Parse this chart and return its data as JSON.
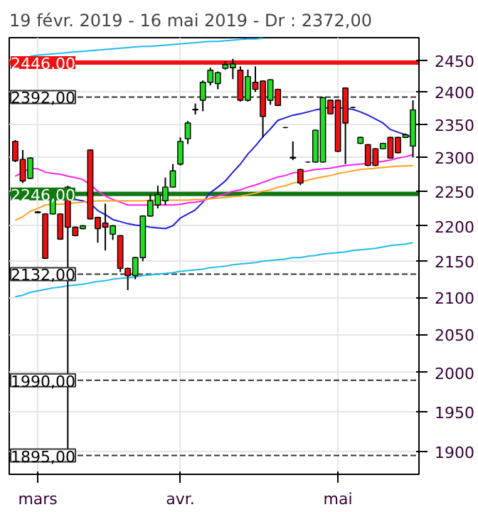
{
  "chart_data": {
    "type": "candlestick",
    "title": "19 févr. 2019 - 16 mai 2019 - Dr : 2372,00",
    "log": "y",
    "grid": true,
    "ylim": [
      1872,
      2486
    ],
    "yticks": [
      1900,
      1950,
      2000,
      2050,
      2100,
      2150,
      2200,
      2250,
      2300,
      2350,
      2400,
      2450
    ],
    "categories": [
      null,
      null,
      null,
      "mars",
      null,
      null,
      null,
      null,
      null,
      null,
      null,
      null,
      null,
      null,
      null,
      null,
      null,
      null,
      null,
      null,
      null,
      null,
      "avr.",
      null,
      null,
      null,
      null,
      null,
      null,
      null,
      null,
      null,
      null,
      null,
      null,
      null,
      null,
      null,
      null,
      null,
      null,
      null,
      null,
      "mai",
      null,
      null,
      null,
      null,
      null,
      null,
      null,
      null,
      null,
      null
    ],
    "ohlc": [
      [
        2324,
        2326,
        2293,
        2295
      ],
      [
        2297,
        2311,
        2262,
        2265
      ],
      [
        2269,
        2300,
        2268,
        2299
      ],
      [
        2220,
        2221,
        2218,
        2219
      ],
      [
        2217,
        2218,
        2153,
        2154
      ],
      [
        2217,
        2246,
        2216,
        2245
      ],
      [
        2217,
        2218,
        2180,
        2181
      ],
      [
        2256,
        2258,
        1895,
        2198
      ],
      [
        2198,
        2199,
        2185,
        2186
      ],
      [
        2196,
        2201,
        2195,
        2200
      ],
      [
        2311,
        2312,
        2209,
        2210
      ],
      [
        2212,
        2213,
        2176,
        2196
      ],
      [
        2204,
        2232,
        2165,
        2198
      ],
      [
        2188,
        2201,
        2180,
        2200
      ],
      [
        2186,
        2187,
        2135,
        2140
      ],
      [
        2140,
        2141,
        2110,
        2130
      ],
      [
        2130,
        2156,
        2125,
        2155
      ],
      [
        2155,
        2215,
        2150,
        2214
      ],
      [
        2214,
        2245,
        2213,
        2236
      ],
      [
        2230,
        2258,
        2225,
        2245
      ],
      [
        2236,
        2270,
        2230,
        2256
      ],
      [
        2256,
        2290,
        2255,
        2280
      ],
      [
        2290,
        2330,
        2288,
        2324
      ],
      [
        2328,
        2355,
        2320,
        2352
      ],
      [
        2372,
        2382,
        2365,
        2373
      ],
      [
        2387,
        2418,
        2370,
        2415
      ],
      [
        2415,
        2438,
        2410,
        2434
      ],
      [
        2413,
        2432,
        2404,
        2430
      ],
      [
        2437,
        2448,
        2435,
        2443
      ],
      [
        2438,
        2452,
        2420,
        2444
      ],
      [
        2434,
        2440,
        2385,
        2387
      ],
      [
        2387,
        2435,
        2385,
        2424
      ],
      [
        2415,
        2440,
        2400,
        2404
      ],
      [
        2417,
        2418,
        2330,
        2362
      ],
      [
        2387,
        2420,
        2380,
        2419
      ],
      [
        2404,
        2405,
        2378,
        2379
      ],
      [
        2345,
        2346,
        2344,
        2345
      ],
      [
        2299,
        2324,
        2296,
        2300
      ],
      [
        2282,
        2283,
        2259,
        2262
      ],
      [
        2293,
        2294,
        2292,
        2293
      ],
      [
        2293,
        2342,
        2292,
        2341
      ],
      [
        2293,
        2392,
        2292,
        2391
      ],
      [
        2387,
        2388,
        2365,
        2366
      ],
      [
        2387,
        2388,
        2308,
        2309
      ],
      [
        2406,
        2407,
        2290,
        2352
      ],
      [
        2376,
        2377,
        2375,
        2376
      ],
      [
        2321,
        2331,
        2320,
        2330
      ],
      [
        2319,
        2320,
        2287,
        2288
      ],
      [
        2313,
        2314,
        2287,
        2288
      ],
      [
        2313,
        2322,
        2312,
        2321
      ],
      [
        2330,
        2331,
        2299,
        2299
      ],
      [
        2330,
        2331,
        2306,
        2307
      ],
      [
        2330,
        2336,
        2329,
        2334
      ],
      [
        2317,
        2387,
        2300,
        2372
      ]
    ],
    "colors": [
      "#ee1111",
      "#ee1111",
      "#22dd22",
      "#000000",
      "#ee1111",
      "#22dd22",
      "#ee1111",
      "#ee1111",
      "#ee1111",
      "#22dd22",
      "#ee1111",
      "#ee1111",
      "#ee1111",
      "#22dd22",
      "#ee1111",
      "#ee1111",
      "#22dd22",
      "#22dd22",
      "#22dd22",
      "#22dd22",
      "#22dd22",
      "#22dd22",
      "#22dd22",
      "#22dd22",
      "#000000",
      "#22dd22",
      "#22dd22",
      "#22dd22",
      "#22dd22",
      "#22dd22",
      "#ee1111",
      "#22dd22",
      "#ee1111",
      "#ee1111",
      "#22dd22",
      "#ee1111",
      "#000000",
      "#000000",
      "#ee1111",
      "#000000",
      "#22dd22",
      "#22dd22",
      "#ee1111",
      "#ee1111",
      "#ee1111",
      "#000000",
      "#22dd22",
      "#ee1111",
      "#ee1111",
      "#22dd22",
      "#ee1111",
      "#ee1111",
      "#22dd22",
      "#22dd22"
    ],
    "series": [
      {
        "type": "line",
        "color": "#1f1fdd",
        "values": [
          null,
          null,
          null,
          null,
          null,
          null,
          null,
          null,
          2238,
          2236,
          2232,
          2222,
          2216,
          2209,
          2206,
          2203,
          2201,
          2200,
          2198,
          2197,
          2196,
          2200,
          2211,
          2217,
          2223,
          2234,
          2248,
          2256,
          2265,
          2278,
          2290,
          2305,
          2317,
          2331,
          2343,
          2356,
          2360,
          2364,
          2366,
          2369,
          2372,
          2374,
          2376,
          2376,
          2374,
          2373,
          2369,
          2364,
          2358,
          2352,
          2342,
          2338,
          2334,
          2330
        ]
      },
      {
        "type": "line",
        "color": "#ff22ee",
        "values": [
          2272,
          2278,
          2284,
          2283,
          2278,
          2276,
          2275,
          2272,
          2270,
          2267,
          2260,
          2250,
          2243,
          2238,
          2234,
          2230,
          2230,
          2230,
          2230,
          2230,
          2230,
          2230,
          2231,
          2233,
          2234,
          2236,
          2240,
          2243,
          2246,
          2250,
          2252,
          2256,
          2259,
          2263,
          2267,
          2271,
          2273,
          2277,
          2278,
          2280,
          2282,
          2283,
          2284,
          2286,
          2288,
          2289,
          2290,
          2291,
          2293,
          2294,
          2296,
          2299,
          2301,
          2304
        ]
      },
      {
        "type": "line",
        "color": "#ffa020",
        "values": [
          2208,
          2213,
          2221,
          2225,
          2230,
          2231,
          2231,
          2232,
          2233,
          2234,
          2235,
          2236,
          2236,
          2236,
          2236,
          2236,
          2236,
          2236,
          2237,
          2237,
          2237,
          2237,
          2237,
          2237,
          2238,
          2238,
          2239,
          2240,
          2241,
          2242,
          2243,
          2245,
          2247,
          2250,
          2252,
          2256,
          2258,
          2262,
          2264,
          2266,
          2269,
          2271,
          2273,
          2276,
          2278,
          2280,
          2282,
          2283,
          2284,
          2285,
          2286,
          2287,
          2287,
          2288
        ]
      },
      {
        "type": "line",
        "color": "#22bbee",
        "values": [
          2101,
          2103,
          2107,
          2109,
          2111,
          2113,
          2114,
          2116,
          2117,
          2118,
          2120,
          2122,
          2123,
          2125,
          2126,
          2127,
          2128,
          2130,
          2131,
          2132,
          2133,
          2134,
          2136,
          2137,
          2138,
          2139,
          2141,
          2142,
          2143,
          2145,
          2146,
          2147,
          2148,
          2150,
          2151,
          2152,
          2153,
          2155,
          2155,
          2157,
          2158,
          2160,
          2161,
          2162,
          2163,
          2165,
          2166,
          2167,
          2168,
          2170,
          2172,
          2173,
          2174,
          2176
        ]
      },
      {
        "type": "line",
        "color": "#22bbee",
        "values": [
          null,
          null,
          2456,
          2458,
          2459,
          2460,
          2461,
          2462,
          2463,
          2464,
          2465,
          2466,
          2467,
          2468,
          2469,
          2470,
          2471,
          2472,
          2472,
          2473,
          2474,
          2475,
          2476,
          2477,
          2478,
          2479,
          2480,
          2480,
          2481,
          2482,
          2483,
          2484,
          2484,
          2485,
          null,
          null,
          null,
          null,
          null,
          null,
          null,
          null,
          null,
          null,
          null,
          null,
          null,
          null,
          null,
          null,
          null,
          null,
          null,
          null
        ]
      }
    ],
    "ref_lines": [
      {
        "axis": "y",
        "value": 2446,
        "label": "2446,00",
        "color": "#ee1111",
        "line_style": "solid"
      },
      {
        "axis": "y",
        "value": 2392,
        "label": "2392,00",
        "color": "#333333",
        "line_style": "dashed"
      },
      {
        "axis": "y",
        "value": 2246,
        "label": "2246,00",
        "color": "#117711",
        "line_style": "solid"
      },
      {
        "axis": "y",
        "value": 2132,
        "label": "2132,00",
        "color": "#333333",
        "line_style": "dashed"
      },
      {
        "axis": "y",
        "value": 1990,
        "label": "1990,00",
        "color": "#333333",
        "line_style": "dashed"
      },
      {
        "axis": "y",
        "value": 1895,
        "label": "1895,00",
        "color": "#333333",
        "line_style": "dashed"
      }
    ]
  }
}
